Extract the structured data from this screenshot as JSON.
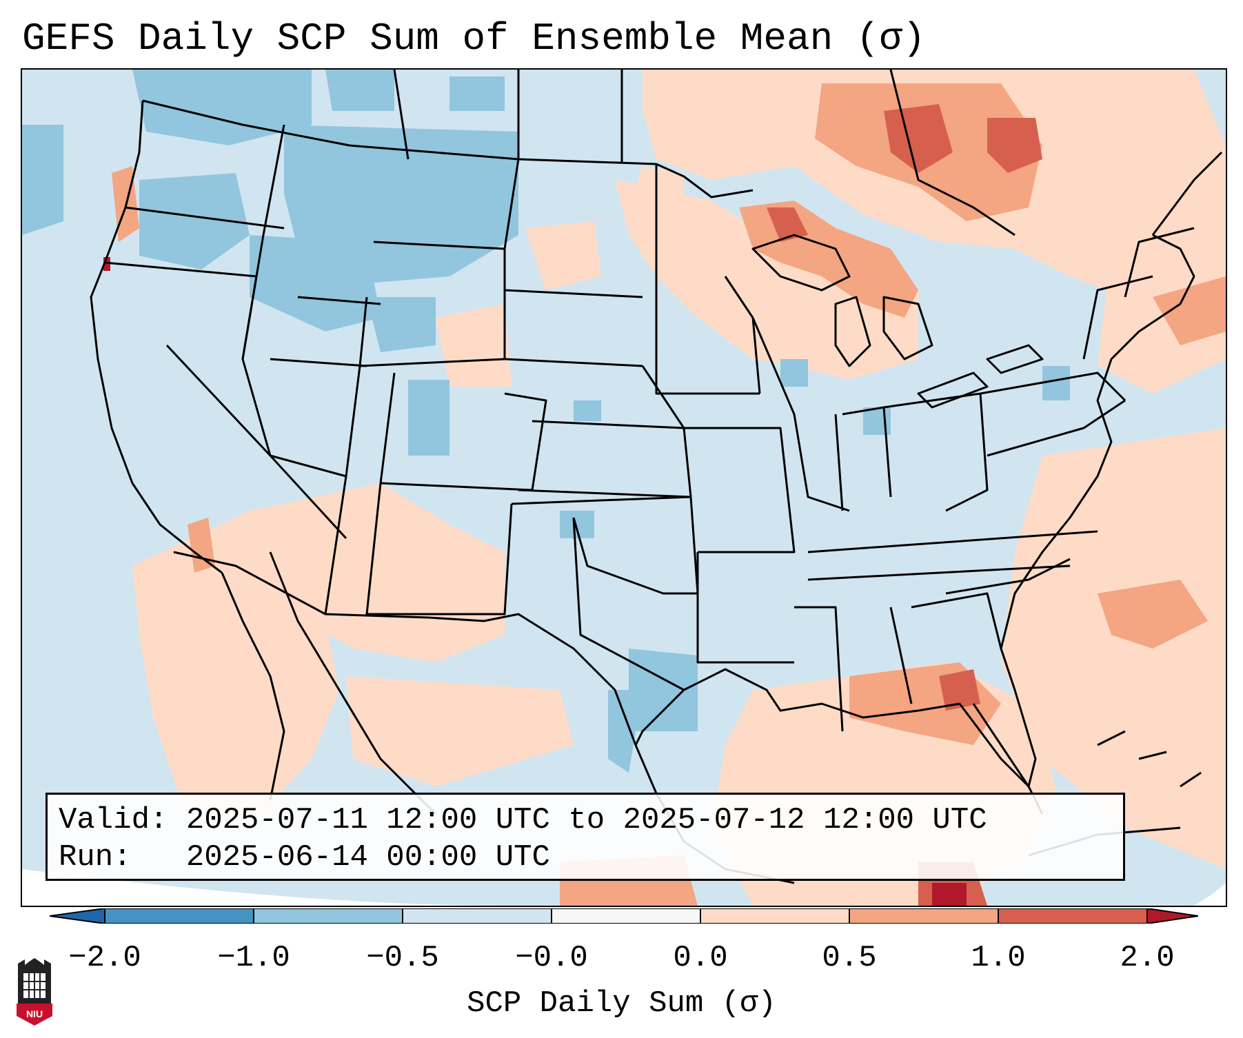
{
  "title": "GEFS Daily SCP Sum of Ensemble Mean (σ)",
  "info": {
    "valid_label": "Valid:",
    "valid_value": "2025-07-11 12:00 UTC to 2025-07-12 12:00 UTC",
    "run_label": "Run:",
    "run_value": "2025-06-14 00:00 UTC"
  },
  "colorbar": {
    "label": "SCP Daily Sum (σ)",
    "ticks": [
      "−2.0",
      "−1.0",
      "−0.5",
      "−0.0",
      "0.0",
      "0.5",
      "1.0",
      "2.0"
    ],
    "bins": [
      {
        "range": "-2.0 to -1.0",
        "color": "#4393c3"
      },
      {
        "range": "-1.0 to -0.5",
        "color": "#92c5de"
      },
      {
        "range": "-0.5 to -0.0",
        "color": "#d1e5f0"
      },
      {
        "range": "-0.0 to 0.0",
        "color": "#f7f7f7"
      },
      {
        "range": "0.0 to 0.5",
        "color": "#fddbc7"
      },
      {
        "range": "0.5 to 1.0",
        "color": "#f4a582"
      },
      {
        "range": "1.0 to 2.0",
        "color": "#d6604d"
      }
    ],
    "under_color": "#2166ac",
    "over_color": "#b2182b"
  },
  "map": {
    "background_color": "#d1e5f0",
    "projection_edge_color": "#ffffff"
  },
  "logo": {
    "text": "NIU",
    "colors": {
      "shield": "#c8102e",
      "tower": "#222222"
    }
  }
}
